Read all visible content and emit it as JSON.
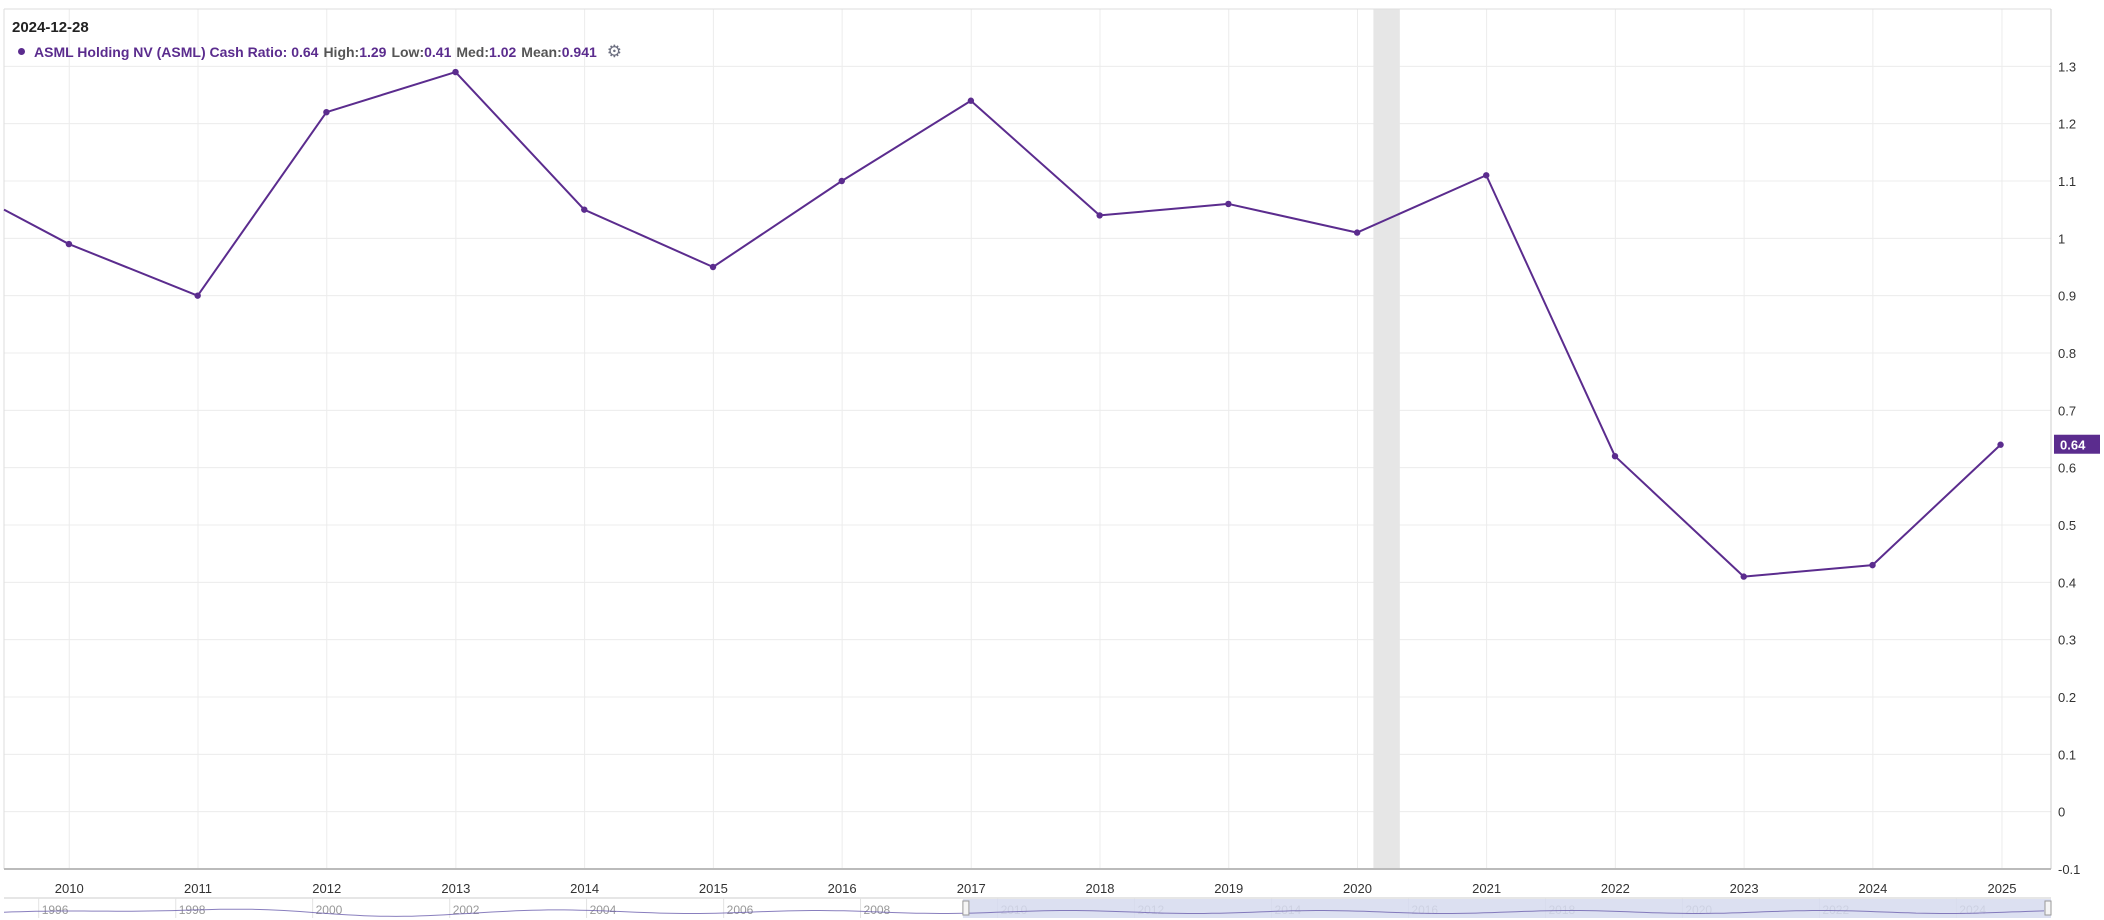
{
  "header": {
    "date": "2024-12-28"
  },
  "legend": {
    "series_label": "ASML Holding NV (ASML) Cash Ratio:",
    "current_value": "0.64",
    "high_label": "High:",
    "high_value": "1.29",
    "low_label": "Low:",
    "low_value": "0.41",
    "med_label": "Med:",
    "med_value": "1.02",
    "mean_label": "Mean:",
    "mean_value": "0.941",
    "settings_icon": "gear-icon"
  },
  "colors": {
    "series": "#5b2c8e",
    "grid": "#ececec",
    "navigator_fill": "#d6dbee",
    "highlight_band": "#e6e6e6"
  },
  "chart_data": {
    "type": "line",
    "title": "",
    "xlabel": "",
    "ylabel": "",
    "x": [
      "2009-06-30",
      "2009-12-31",
      "2010-12-31",
      "2011-12-31",
      "2012-12-31",
      "2013-12-31",
      "2014-12-31",
      "2015-12-31",
      "2016-12-31",
      "2017-12-31",
      "2018-12-31",
      "2019-12-31",
      "2020-12-31",
      "2021-12-31",
      "2022-12-31",
      "2023-12-31",
      "2024-12-28"
    ],
    "series": [
      {
        "values": [
          1.05,
          0.99,
          0.9,
          1.22,
          1.29,
          1.05,
          0.95,
          1.1,
          1.24,
          1.04,
          1.06,
          1.01,
          1.11,
          0.62,
          0.41,
          0.43,
          0.64
        ]
      }
    ],
    "ylim": [
      -0.1,
      1.4
    ],
    "xlim": [
      "2009-06-30",
      "2025-05-20"
    ],
    "y_ticks": [
      "-0.1",
      "0",
      "0.1",
      "0.2",
      "0.3",
      "0.4",
      "0.5",
      "0.6",
      "0.7",
      "0.8",
      "0.9",
      "1",
      "1.1",
      "1.2",
      "1.3"
    ],
    "x_ticks": [
      "2010",
      "2011",
      "2012",
      "2013",
      "2014",
      "2015",
      "2016",
      "2017",
      "2018",
      "2019",
      "2020",
      "2021",
      "2022",
      "2023",
      "2024",
      "2025"
    ],
    "last_value_label": "0.64",
    "highlight_band": [
      "2020-02-15",
      "2020-04-30"
    ],
    "grid": true,
    "navigator": {
      "labels": [
        "1996",
        "1998",
        "2000",
        "2002",
        "2004",
        "2006",
        "2008",
        "2010",
        "2012",
        "2014",
        "2016",
        "2018",
        "2020",
        "2022",
        "2024"
      ],
      "x_range": [
        "1995-06-30",
        "2025-05-20"
      ],
      "selected_range": [
        "2009-06-30",
        "2025-05-20"
      ]
    }
  }
}
